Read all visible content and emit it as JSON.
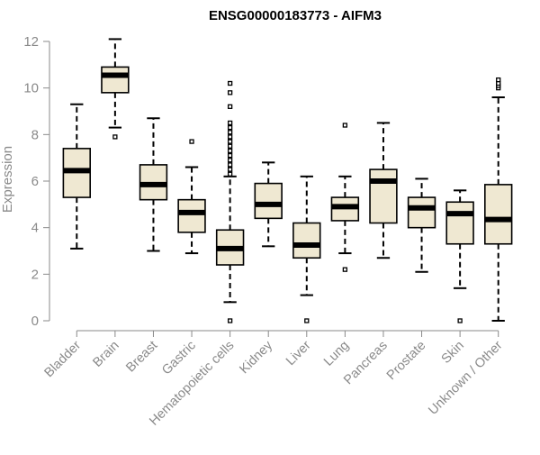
{
  "chart_data": {
    "type": "boxplot",
    "title": "ENSG00000183773 - AIFM3",
    "xlabel": "",
    "ylabel": "Expression",
    "ylim": [
      0,
      12
    ],
    "yticks": [
      0,
      2,
      4,
      6,
      8,
      10,
      12
    ],
    "box_fill": "#efe8d2",
    "box_stroke": "#000000",
    "categories": [
      "Bladder",
      "Brain",
      "Breast",
      "Gastric",
      "Hematopoietic cells",
      "Kidney",
      "Liver",
      "Lung",
      "Pancreas",
      "Prostate",
      "Skin",
      "Unknown / Other"
    ],
    "boxes": [
      {
        "min": 3.1,
        "q1": 5.3,
        "median": 6.45,
        "q3": 7.4,
        "max": 9.3,
        "outliers": []
      },
      {
        "min": 8.3,
        "q1": 9.8,
        "median": 10.55,
        "q3": 10.9,
        "max": 12.1,
        "outliers": [
          7.9
        ]
      },
      {
        "min": 3.0,
        "q1": 5.2,
        "median": 5.85,
        "q3": 6.7,
        "max": 8.7,
        "outliers": []
      },
      {
        "min": 2.9,
        "q1": 3.8,
        "median": 4.65,
        "q3": 5.2,
        "max": 6.6,
        "outliers": [
          7.7
        ]
      },
      {
        "min": 0.8,
        "q1": 2.4,
        "median": 3.1,
        "q3": 3.9,
        "max": 6.2,
        "outliers": [
          0.0,
          6.3,
          6.5,
          6.7,
          6.9,
          7.1,
          7.3,
          7.5,
          7.7,
          7.9,
          8.1,
          8.3,
          8.5,
          9.2,
          9.8,
          10.2
        ]
      },
      {
        "min": 3.2,
        "q1": 4.4,
        "median": 5.0,
        "q3": 5.9,
        "max": 6.8,
        "outliers": []
      },
      {
        "min": 1.1,
        "q1": 2.7,
        "median": 3.25,
        "q3": 4.2,
        "max": 6.2,
        "outliers": [
          0.0
        ]
      },
      {
        "min": 2.9,
        "q1": 4.3,
        "median": 4.9,
        "q3": 5.3,
        "max": 6.2,
        "outliers": [
          8.4,
          2.2
        ]
      },
      {
        "min": 2.7,
        "q1": 4.2,
        "median": 6.0,
        "q3": 6.5,
        "max": 8.5,
        "outliers": []
      },
      {
        "min": 2.1,
        "q1": 4.0,
        "median": 4.85,
        "q3": 5.3,
        "max": 6.1,
        "outliers": []
      },
      {
        "min": 1.4,
        "q1": 3.3,
        "median": 4.6,
        "q3": 5.1,
        "max": 5.6,
        "outliers": [
          0.0
        ]
      },
      {
        "min": 0.0,
        "q1": 3.3,
        "median": 4.35,
        "q3": 5.85,
        "max": 9.6,
        "outliers": [
          10.0,
          10.1,
          10.2,
          10.35
        ]
      }
    ]
  }
}
